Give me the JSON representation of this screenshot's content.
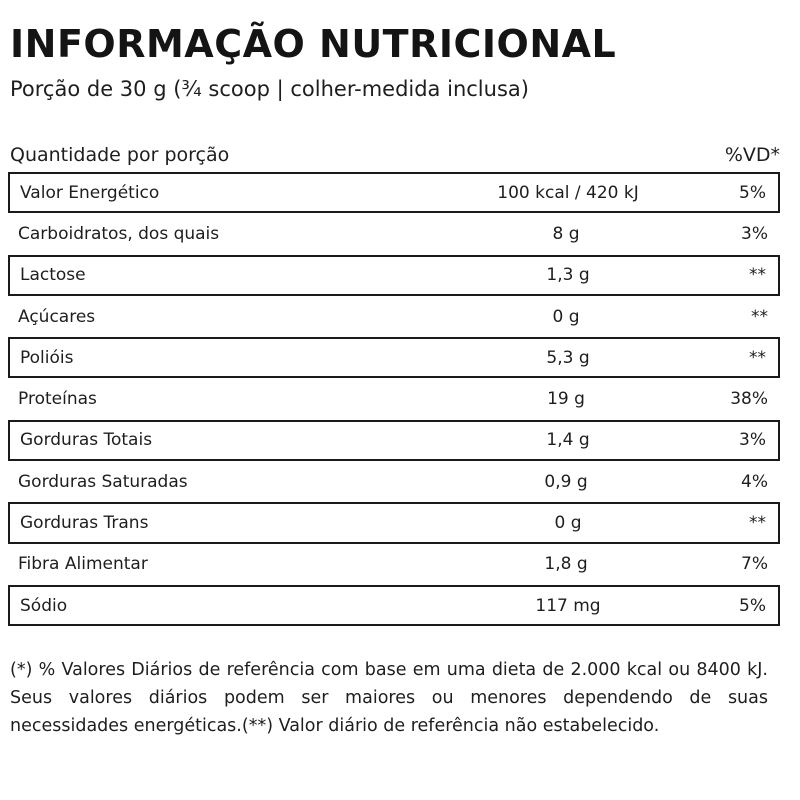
{
  "title": "INFORMAÇÃO NUTRICIONAL",
  "serving": "Porção de 30 g (¾ scoop | colher-medida inclusa)",
  "header": {
    "quantity_label": "Quantidade por porção",
    "vd_label": "%VD*"
  },
  "rows": [
    {
      "name": "Valor Energético",
      "amount": "100 kcal / 420 kJ",
      "vd": "5%"
    },
    {
      "name": "Carboidratos, dos quais",
      "amount": "8 g",
      "vd": "3%"
    },
    {
      "name": "Lactose",
      "amount": "1,3 g",
      "vd": "**"
    },
    {
      "name": "Açúcares",
      "amount": "0 g",
      "vd": "**"
    },
    {
      "name": "Polióis",
      "amount": "5,3 g",
      "vd": "**"
    },
    {
      "name": "Proteínas",
      "amount": "19 g",
      "vd": "38%"
    },
    {
      "name": "Gorduras Totais",
      "amount": "1,4 g",
      "vd": "3%"
    },
    {
      "name": "Gorduras Saturadas",
      "amount": "0,9 g",
      "vd": "4%"
    },
    {
      "name": "Gorduras Trans",
      "amount": "0 g",
      "vd": "**"
    },
    {
      "name": "Fibra Alimentar",
      "amount": "1,8 g",
      "vd": "7%"
    },
    {
      "name": "Sódio",
      "amount": "117 mg",
      "vd": "5%"
    }
  ],
  "footnote": "(*) % Valores Diários de referência com base em uma dieta de 2.000 kcal ou 8400 kJ. Seus valores diários podem ser maiores ou menores dependendo de suas necessidades energéticas.(**) Valor diário de referência não estabelecido."
}
